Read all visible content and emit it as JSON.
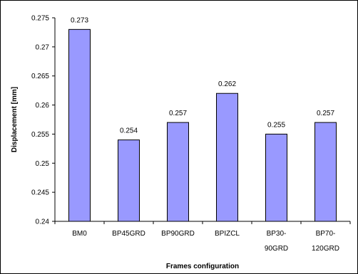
{
  "chart_data": {
    "type": "bar",
    "categories": [
      "BM0",
      "BP45GRD",
      "BP90GRD",
      "BPIZCL",
      "BP30-90GRD",
      "BP70-120GRD"
    ],
    "category_lines": [
      [
        "BM0"
      ],
      [
        "BP45GRD"
      ],
      [
        "BP90GRD"
      ],
      [
        "BPIZCL"
      ],
      [
        "BP30-",
        "90GRD"
      ],
      [
        "BP70-",
        "120GRD"
      ]
    ],
    "values": [
      0.273,
      0.254,
      0.257,
      0.262,
      0.255,
      0.257
    ],
    "data_labels": [
      "0.273",
      "0.254",
      "0.257",
      "0.262",
      "0.255",
      "0.257"
    ],
    "xlabel": "Frames configuration",
    "ylabel": "Displacement [mm]",
    "ylim": [
      0.24,
      0.275
    ],
    "yticks": [
      0.24,
      0.245,
      0.25,
      0.255,
      0.26,
      0.265,
      0.27,
      0.275
    ],
    "ytick_labels": [
      "0.24",
      "0.245",
      "0.25",
      "0.255",
      "0.26",
      "0.265",
      "0.27",
      "0.275"
    ],
    "grid": false,
    "legend": "none",
    "colors": {
      "bar_fill": "#9999FF",
      "bar_stroke": "#000000",
      "axis": "#000000"
    }
  }
}
